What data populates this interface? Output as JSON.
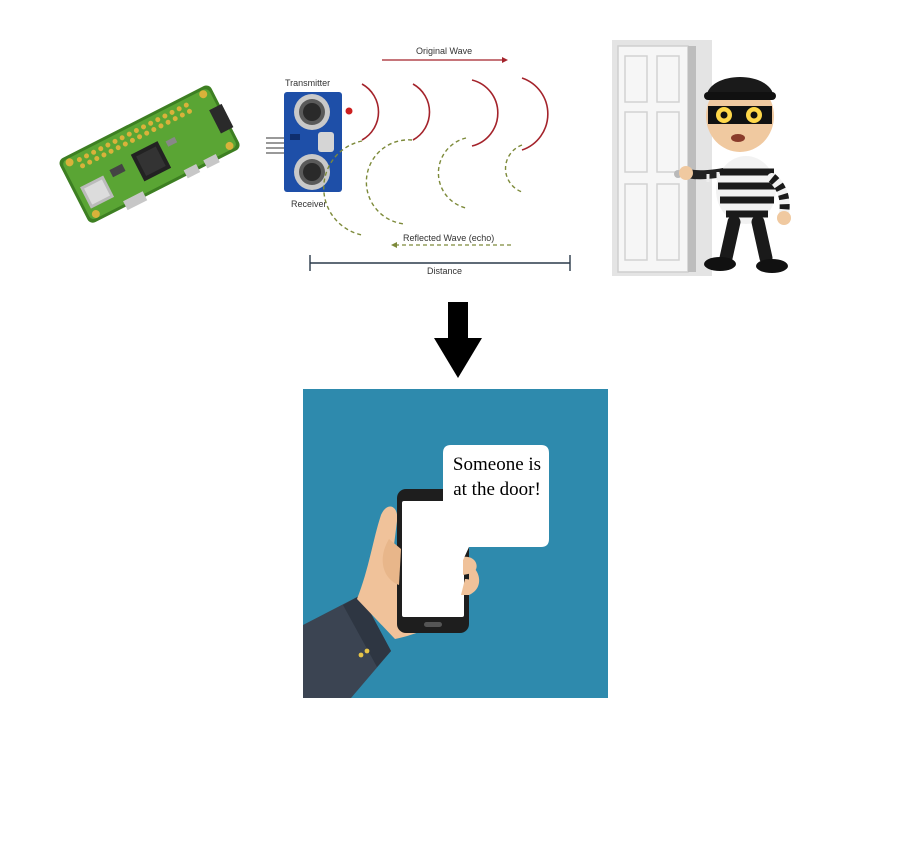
{
  "sensor_diagram": {
    "transmitter_label": "Transmitter",
    "receiver_label": "Receiver",
    "original_wave_label": "Original Wave",
    "reflected_wave_label": "Reflected Wave (echo)",
    "distance_label": "Distance"
  },
  "notification": {
    "message": "Someone is at the door!"
  },
  "colors": {
    "board_green": "#4f9a2e",
    "sensor_blue": "#1e4fa8",
    "original_wave": "#a4232b",
    "reflected_wave": "#7d8a3a",
    "panel_background": "#2e8aad"
  }
}
